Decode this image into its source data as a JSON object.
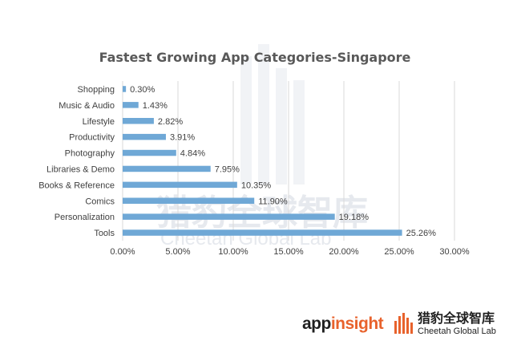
{
  "chart_data": {
    "type": "bar",
    "orientation": "horizontal",
    "title": "Fastest Growing App Categories-Singapore",
    "categories": [
      "Shopping",
      "Music & Audio",
      "Lifestyle",
      "Productivity",
      "Photography",
      "Libraries & Demo",
      "Books & Reference",
      "Comics",
      "Personalization",
      "Tools"
    ],
    "values": [
      0.3,
      1.43,
      2.82,
      3.91,
      4.84,
      7.95,
      10.35,
      11.9,
      19.18,
      25.26
    ],
    "value_labels": [
      "0.30%",
      "1.43%",
      "2.82%",
      "3.91%",
      "4.84%",
      "7.95%",
      "10.35%",
      "11.90%",
      "19.18%",
      "25.26%"
    ],
    "xlim": [
      0,
      30
    ],
    "x_ticks": [
      0,
      5,
      10,
      15,
      20,
      25,
      30
    ],
    "x_tick_labels": [
      "0.00%",
      "5.00%",
      "10.00%",
      "15.00%",
      "20.00%",
      "25.00%",
      "30.00%"
    ],
    "grid": true,
    "legend": "none",
    "bar_color": "#6fa8d6",
    "grid_color": "#d9d9d9"
  },
  "branding": {
    "appinsight_part1": "app",
    "appinsight_part2": "insight",
    "cheetah_cn": "猎豹全球智库",
    "cheetah_en": "Cheetah Global Lab",
    "accent_color": "#e8622c"
  }
}
